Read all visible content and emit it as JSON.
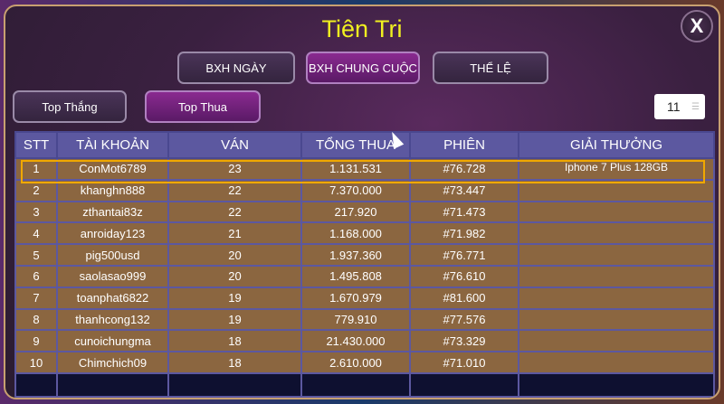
{
  "title": "Tiên Tri",
  "close_label": "X",
  "tabs": [
    {
      "label": "BXH NGÀY",
      "active": false
    },
    {
      "label": "BXH CHUNG CUỘC",
      "active": true
    },
    {
      "label": "THỂ LỆ",
      "active": false
    }
  ],
  "subtabs": [
    {
      "label": "Top Thắng",
      "active": false
    },
    {
      "label": "Top Thua",
      "active": true
    }
  ],
  "select": {
    "value": "11",
    "icon": "menu-icon"
  },
  "table": {
    "headers": [
      "STT",
      "TÀI KHOẢN",
      "VÁN",
      "TỔNG THUA",
      "PHIÊN",
      "GIẢI THƯỞNG"
    ],
    "rows": [
      [
        "1",
        "ConMot6789",
        "23",
        "1.131.531",
        "#76.728",
        "Iphone 7 Plus 128GB"
      ],
      [
        "2",
        "khanghn888",
        "22",
        "7.370.000",
        "#73.447",
        ""
      ],
      [
        "3",
        "zthantai83z",
        "22",
        "217.920",
        "#71.473",
        ""
      ],
      [
        "4",
        "anroiday123",
        "21",
        "1.168.000",
        "#71.982",
        ""
      ],
      [
        "5",
        "pig500usd",
        "20",
        "1.937.360",
        "#76.771",
        ""
      ],
      [
        "6",
        "saolasao999",
        "20",
        "1.495.808",
        "#76.610",
        ""
      ],
      [
        "7",
        "toanphat6822",
        "19",
        "1.670.979",
        "#81.600",
        ""
      ],
      [
        "8",
        "thanhcong132",
        "19",
        "779.910",
        "#77.576",
        ""
      ],
      [
        "9",
        "cunoichungma",
        "18",
        "21.430.000",
        "#73.329",
        ""
      ],
      [
        "10",
        "Chimchich09",
        "18",
        "2.610.000",
        "#71.010",
        ""
      ]
    ]
  },
  "colors": {
    "title": "#f0f020",
    "header": "#5c58a0",
    "row": "#8b6640",
    "highlight": "#f0a800"
  }
}
